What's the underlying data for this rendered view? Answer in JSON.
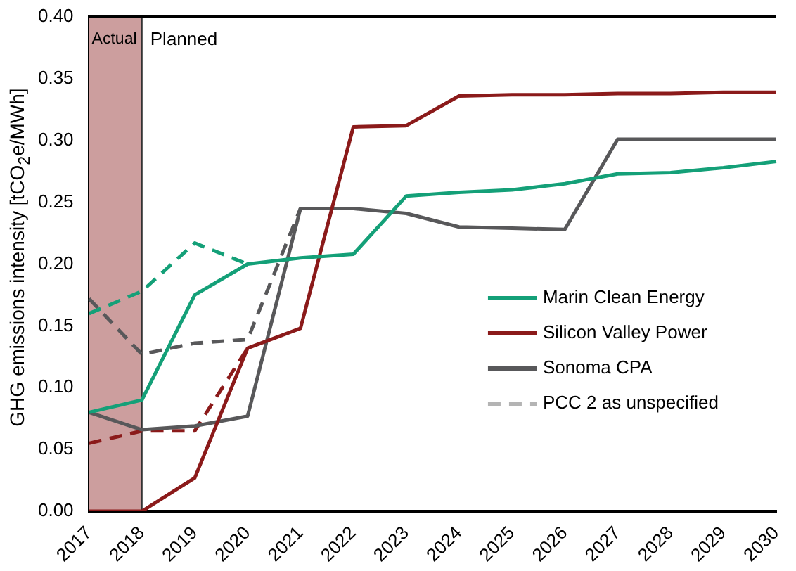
{
  "chart_data": {
    "type": "line",
    "ylabel": "GHG emissions intensity [tCO$_{2}$e/MWh]",
    "categories": [
      "2017",
      "2018",
      "2019",
      "2020",
      "2021",
      "2022",
      "2023",
      "2024",
      "2025",
      "2026",
      "2027",
      "2028",
      "2029",
      "2030"
    ],
    "series": [
      {
        "name": "Marin Clean Energy",
        "color": "#14a078",
        "line_style": "solid",
        "values": [
          0.08,
          0.09,
          0.175,
          0.2,
          0.205,
          0.208,
          0.255,
          0.258,
          0.26,
          0.265,
          0.273,
          0.274,
          0.278,
          0.283
        ]
      },
      {
        "name": "Silicon Valley Power",
        "color": "#8b1a1a",
        "line_style": "solid",
        "values": [
          0,
          0,
          0.027,
          0.132,
          0.148,
          0.311,
          0.312,
          0.336,
          0.337,
          0.337,
          0.338,
          0.338,
          0.339,
          0.339
        ]
      },
      {
        "name": "Sonoma CPA",
        "color": "#58585a",
        "line_style": "solid",
        "values": [
          0.08,
          0.066,
          0.069,
          0.077,
          0.245,
          0.245,
          0.241,
          0.23,
          0.229,
          0.228,
          0.301,
          0.301,
          0.301,
          0.301
        ]
      },
      {
        "name": "PCC 2 as unspecified",
        "color": "#b4b4b4",
        "line_style": "dashed",
        "values": [
          null,
          null,
          null,
          null,
          null,
          null,
          null,
          null,
          null,
          null,
          null,
          null,
          null,
          null
        ]
      },
      {
        "color": "#14a078",
        "line_style": "dashed",
        "values": [
          0.16,
          0.178,
          0.217,
          0.2,
          null,
          null,
          null,
          null,
          null,
          null,
          null,
          null,
          null,
          null
        ]
      },
      {
        "color": "#8b1a1a",
        "line_style": "dashed",
        "values": [
          0.055,
          0.065,
          0.065,
          0.132,
          null,
          null,
          null,
          null,
          null,
          null,
          null,
          null,
          null,
          null
        ]
      },
      {
        "color": "#58585a",
        "line_style": "dashed",
        "values": [
          0.172,
          0.127,
          0.136,
          0.139,
          0.245,
          null,
          null,
          null,
          null,
          null,
          null,
          null,
          null,
          null
        ]
      }
    ],
    "ylim": [
      0,
      0.4
    ],
    "yticks": [
      {
        "value": 0,
        "label": "0.00"
      },
      {
        "value": 0.05,
        "label": "0.05"
      },
      {
        "value": 0.1,
        "label": "0.10"
      },
      {
        "value": 0.15,
        "label": "0.15"
      },
      {
        "value": 0.2,
        "label": "0.20"
      },
      {
        "value": 0.25,
        "label": "0.25"
      },
      {
        "value": 0.3,
        "label": "0.30"
      },
      {
        "value": 0.35,
        "label": "0.35"
      },
      {
        "value": 0.4,
        "label": "0.40"
      }
    ],
    "bands": [
      {
        "axis": "x",
        "from": "2017",
        "to": "2018",
        "label": "Actual",
        "color": "#cc9e9e"
      }
    ],
    "ref_lines": [
      {
        "axis": "x",
        "value": "2018",
        "label": "Planned",
        "color": "#333333"
      }
    ],
    "grid": false,
    "legend": "right",
    "marker": "none"
  }
}
